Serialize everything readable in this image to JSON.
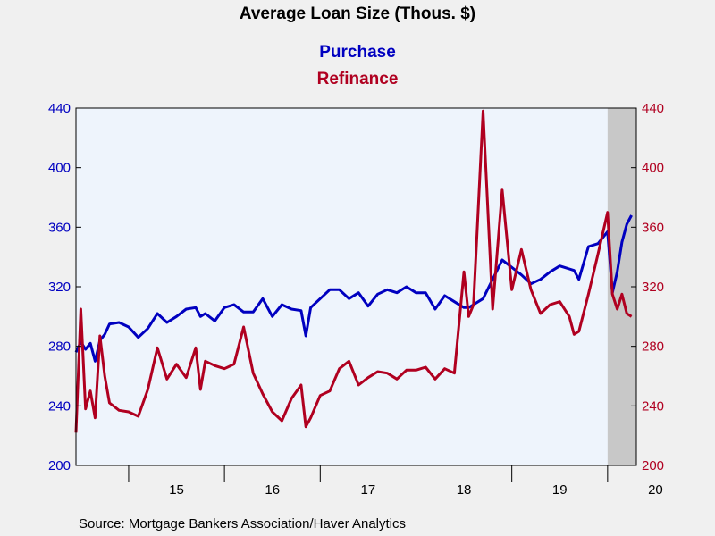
{
  "chart_data": {
    "type": "line",
    "title": "Average Loan Size (Thous. $)",
    "legend_placement": "top-center",
    "grid": false,
    "source": "Source:  Mortgage Bankers Association/Haver Analytics",
    "x_range": [
      2014.45,
      2020.3
    ],
    "x_ticks": [
      {
        "label": "15",
        "value": 2015.0
      },
      {
        "label": "16",
        "value": 2016.0
      },
      {
        "label": "17",
        "value": 2017.0
      },
      {
        "label": "18",
        "value": 2018.0
      },
      {
        "label": "19",
        "value": 2019.0
      },
      {
        "label": "20",
        "value": 2020.0
      }
    ],
    "year_boundaries": [
      2015,
      2016,
      2017,
      2018,
      2019,
      2020
    ],
    "ylim": [
      200,
      440
    ],
    "y_ticks": [
      200,
      240,
      280,
      320,
      360,
      400,
      440
    ],
    "y_ticks_left_labels": [
      "200",
      "240",
      "280",
      "320",
      "360",
      "400",
      "440"
    ],
    "y_ticks_right_labels": [
      "200",
      "240",
      "280",
      "320",
      "360",
      "400",
      "440"
    ],
    "recession_shade": {
      "start": 2020.0,
      "end": 2020.3
    },
    "colors": {
      "purchase": "#0000c0",
      "refinance": "#b00020",
      "plot_bg": "#eef4fc",
      "shade": "#c8c8c8",
      "axis": "#000000"
    },
    "series": [
      {
        "name": "Purchase",
        "color": "#0000c0",
        "x": [
          2014.45,
          2014.5,
          2014.55,
          2014.6,
          2014.65,
          2014.7,
          2014.75,
          2014.8,
          2014.9,
          2015.0,
          2015.1,
          2015.2,
          2015.3,
          2015.4,
          2015.5,
          2015.6,
          2015.7,
          2015.75,
          2015.8,
          2015.9,
          2016.0,
          2016.1,
          2016.2,
          2016.3,
          2016.4,
          2016.5,
          2016.6,
          2016.7,
          2016.8,
          2016.85,
          2016.9,
          2017.0,
          2017.1,
          2017.2,
          2017.3,
          2017.4,
          2017.5,
          2017.6,
          2017.7,
          2017.8,
          2017.9,
          2018.0,
          2018.1,
          2018.2,
          2018.3,
          2018.4,
          2018.5,
          2018.55,
          2018.6,
          2018.7,
          2018.8,
          2018.9,
          2019.0,
          2019.1,
          2019.2,
          2019.3,
          2019.4,
          2019.5,
          2019.6,
          2019.65,
          2019.7,
          2019.8,
          2019.9,
          2020.0,
          2020.05,
          2020.1,
          2020.15,
          2020.2,
          2020.25
        ],
        "values": [
          276,
          283,
          278,
          282,
          270,
          284,
          288,
          295,
          296,
          293,
          286,
          292,
          302,
          296,
          300,
          305,
          306,
          300,
          302,
          297,
          306,
          308,
          303,
          303,
          312,
          300,
          308,
          305,
          304,
          287,
          306,
          312,
          318,
          318,
          312,
          316,
          307,
          315,
          318,
          316,
          320,
          316,
          316,
          305,
          314,
          310,
          306,
          306,
          308,
          312,
          325,
          338,
          333,
          328,
          322,
          325,
          330,
          334,
          332,
          331,
          325,
          347,
          349,
          357,
          316,
          330,
          350,
          362,
          368
        ]
      },
      {
        "name": "Refinance",
        "color": "#b00020",
        "x": [
          2014.45,
          2014.5,
          2014.55,
          2014.6,
          2014.65,
          2014.7,
          2014.75,
          2014.8,
          2014.9,
          2015.0,
          2015.1,
          2015.2,
          2015.3,
          2015.4,
          2015.5,
          2015.6,
          2015.7,
          2015.75,
          2015.8,
          2015.9,
          2016.0,
          2016.1,
          2016.2,
          2016.3,
          2016.4,
          2016.5,
          2016.6,
          2016.7,
          2016.8,
          2016.85,
          2016.9,
          2017.0,
          2017.1,
          2017.2,
          2017.3,
          2017.4,
          2017.5,
          2017.6,
          2017.7,
          2017.8,
          2017.9,
          2018.0,
          2018.1,
          2018.2,
          2018.3,
          2018.4,
          2018.5,
          2018.55,
          2018.6,
          2018.7,
          2018.8,
          2018.9,
          2019.0,
          2019.1,
          2019.2,
          2019.3,
          2019.4,
          2019.5,
          2019.6,
          2019.65,
          2019.7,
          2019.8,
          2019.9,
          2020.0,
          2020.05,
          2020.1,
          2020.15,
          2020.2,
          2020.25
        ],
        "values": [
          222,
          305,
          238,
          250,
          232,
          287,
          260,
          242,
          237,
          236,
          233,
          251,
          279,
          258,
          268,
          259,
          279,
          251,
          270,
          267,
          265,
          268,
          293,
          262,
          248,
          236,
          230,
          245,
          254,
          226,
          232,
          247,
          250,
          265,
          270,
          254,
          259,
          263,
          262,
          258,
          264,
          264,
          266,
          258,
          265,
          262,
          330,
          300,
          308,
          438,
          305,
          385,
          318,
          345,
          318,
          302,
          308,
          310,
          300,
          288,
          290,
          315,
          342,
          370,
          315,
          305,
          315,
          302,
          300
        ]
      }
    ]
  }
}
